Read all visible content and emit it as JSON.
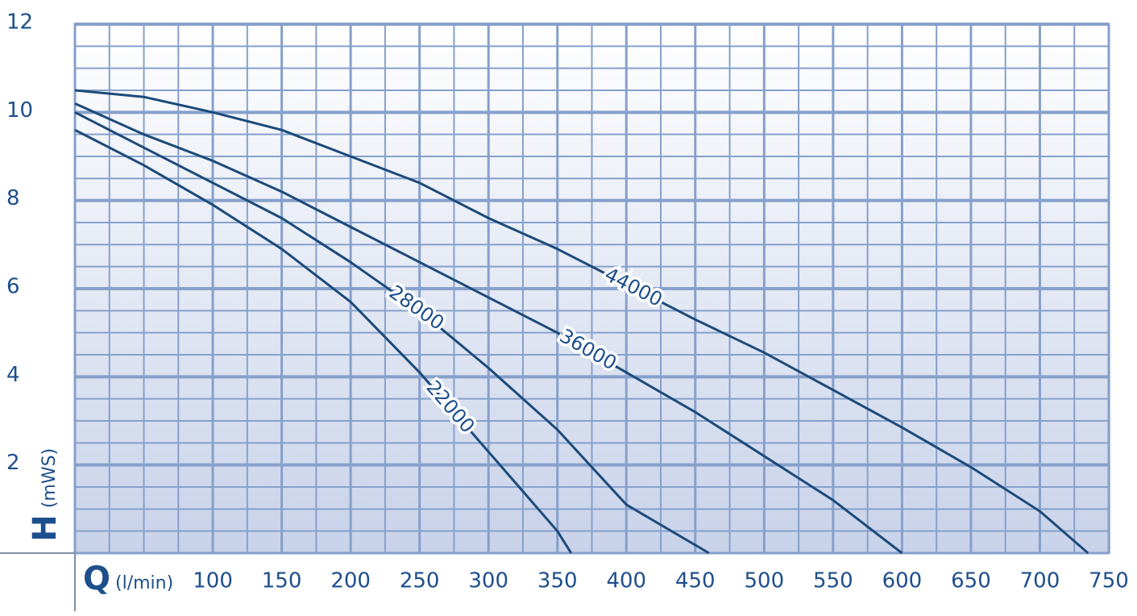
{
  "chart_data": {
    "type": "line",
    "x_label": "Q",
    "x_unit": "(l/min)",
    "y_label": "H",
    "y_unit": "(mWS)",
    "xlim": [
      0,
      750
    ],
    "xticks": [
      100,
      150,
      200,
      250,
      300,
      350,
      400,
      450,
      500,
      550,
      600,
      650,
      700,
      750
    ],
    "ylim": [
      0,
      12
    ],
    "yticks": [
      2,
      4,
      6,
      8,
      10,
      12
    ],
    "grid": true,
    "series": [
      {
        "name": "22000",
        "color": "#1c4a7a",
        "x": [
          0,
          50,
          100,
          150,
          200,
          250,
          300,
          350,
          360
        ],
        "values": [
          9.6,
          8.8,
          7.9,
          6.9,
          5.7,
          4.1,
          2.3,
          0.5,
          0
        ]
      },
      {
        "name": "28000",
        "color": "#1c4a7a",
        "x": [
          0,
          50,
          100,
          150,
          200,
          250,
          300,
          350,
          400,
          460
        ],
        "values": [
          10.0,
          9.2,
          8.4,
          7.6,
          6.6,
          5.5,
          4.2,
          2.8,
          1.1,
          0
        ]
      },
      {
        "name": "36000",
        "color": "#1c4a7a",
        "x": [
          0,
          50,
          100,
          150,
          200,
          250,
          300,
          350,
          400,
          450,
          500,
          550,
          600
        ],
        "values": [
          10.2,
          9.5,
          8.9,
          8.2,
          7.4,
          6.6,
          5.8,
          5.0,
          4.1,
          3.2,
          2.2,
          1.2,
          0
        ]
      },
      {
        "name": "44000",
        "color": "#1c4a7a",
        "x": [
          0,
          50,
          100,
          150,
          200,
          250,
          300,
          350,
          400,
          450,
          500,
          550,
          600,
          650,
          700,
          735
        ],
        "values": [
          10.5,
          10.35,
          10.0,
          9.6,
          9.0,
          8.4,
          7.6,
          6.9,
          6.1,
          5.3,
          4.55,
          3.7,
          2.85,
          1.95,
          0.95,
          0
        ]
      }
    ]
  }
}
